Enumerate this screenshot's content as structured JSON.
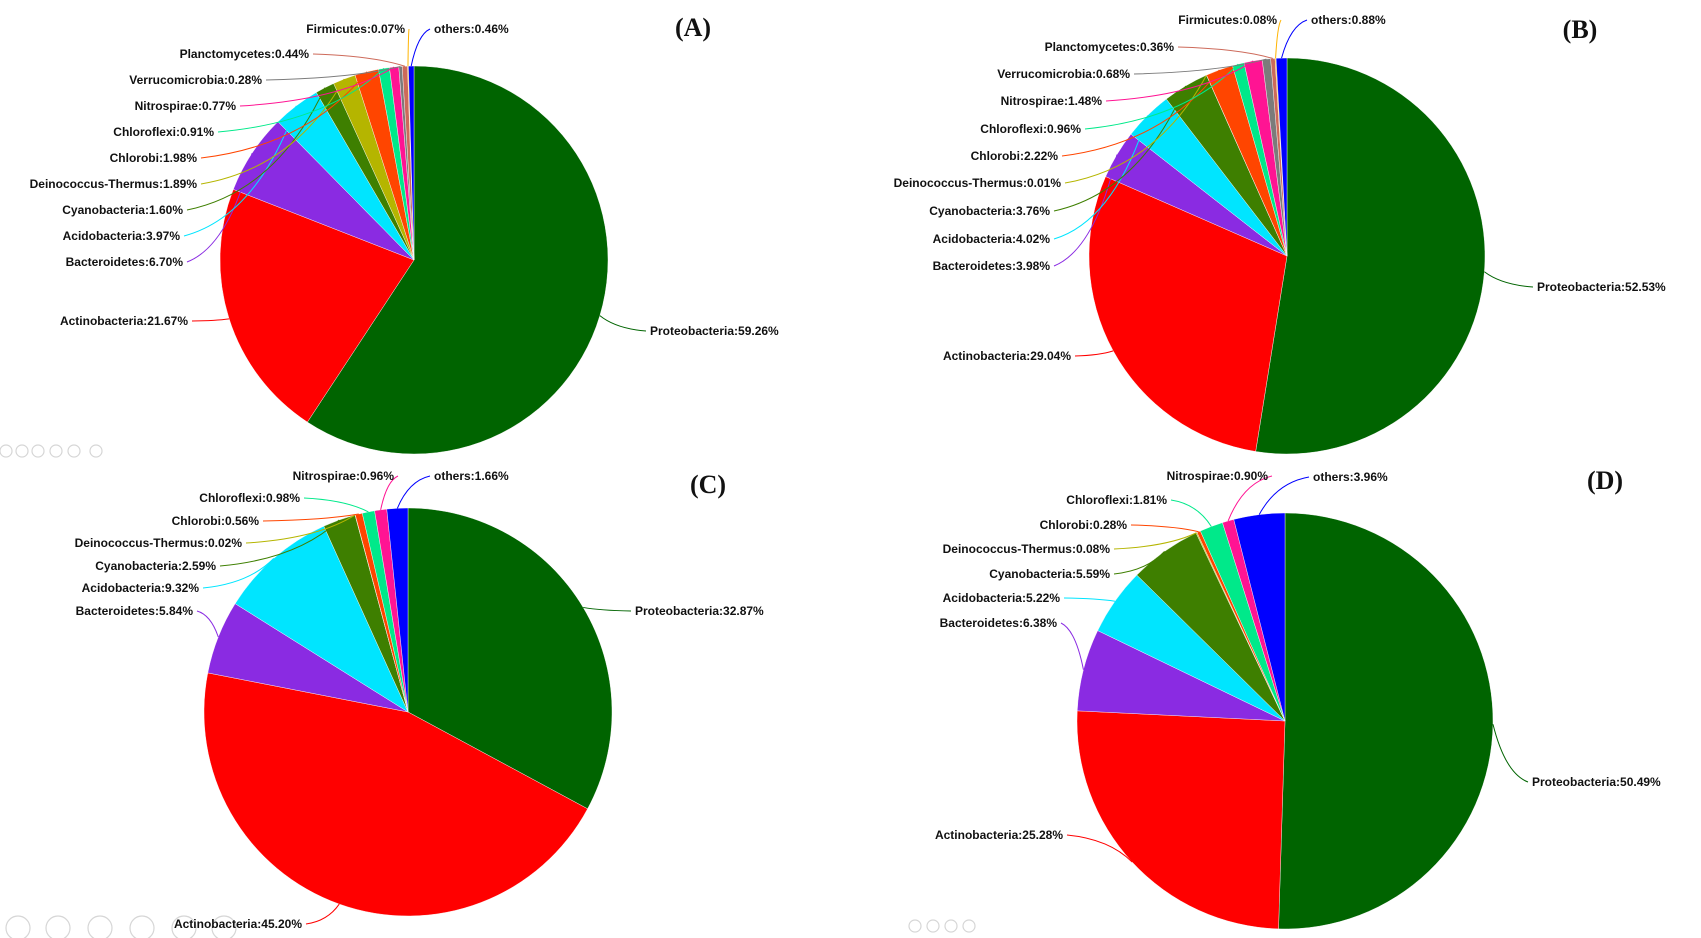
{
  "colors": {
    "Proteobacteria": "#006400",
    "Actinobacteria": "#ff0000",
    "Bacteroidetes": "#8a2be2",
    "Acidobacteria": "#00e5ff",
    "Cyanobacteria": "#3e7f00",
    "Deinococcus-Thermus": "#b5b500",
    "Chlorobi": "#ff4500",
    "Chloroflexi": "#00e98a",
    "Nitrospirae": "#ff1493",
    "Verrucomicrobia": "#7b7b7b",
    "Planctomycetes": "#cd6a5a",
    "Firmicutes": "#ffb400",
    "others": "#0000ff"
  },
  "chart_data": [
    {
      "type": "pie",
      "title": "(A)",
      "slices": [
        {
          "name": "Proteobacteria",
          "value": 59.26,
          "label": "Proteobacteria:59.26%"
        },
        {
          "name": "Actinobacteria",
          "value": 21.67,
          "label": "Actinobacteria:21.67%"
        },
        {
          "name": "Bacteroidetes",
          "value": 6.7,
          "label": "Bacteroidetes:6.70%"
        },
        {
          "name": "Acidobacteria",
          "value": 3.97,
          "label": "Acidobacteria:3.97%"
        },
        {
          "name": "Cyanobacteria",
          "value": 1.6,
          "label": "Cyanobacteria:1.60%"
        },
        {
          "name": "Deinococcus-Thermus",
          "value": 1.89,
          "label": "Deinococcus-Thermus:1.89%"
        },
        {
          "name": "Chlorobi",
          "value": 1.98,
          "label": "Chlorobi:1.98%"
        },
        {
          "name": "Chloroflexi",
          "value": 0.91,
          "label": "Chloroflexi:0.91%"
        },
        {
          "name": "Nitrospirae",
          "value": 0.77,
          "label": "Nitrospirae:0.77%"
        },
        {
          "name": "Verrucomicrobia",
          "value": 0.28,
          "label": "Verrucomicrobia:0.28%"
        },
        {
          "name": "Planctomycetes",
          "value": 0.44,
          "label": "Planctomycetes:0.44%"
        },
        {
          "name": "Firmicutes",
          "value": 0.07,
          "label": "Firmicutes:0.07%"
        },
        {
          "name": "others",
          "value": 0.46,
          "label": "others:0.46%"
        }
      ]
    },
    {
      "type": "pie",
      "title": "(B)",
      "slices": [
        {
          "name": "Proteobacteria",
          "value": 52.53,
          "label": "Proteobacteria:52.53%"
        },
        {
          "name": "Actinobacteria",
          "value": 29.04,
          "label": "Actinobacteria:29.04%"
        },
        {
          "name": "Bacteroidetes",
          "value": 3.98,
          "label": "Bacteroidetes:3.98%"
        },
        {
          "name": "Acidobacteria",
          "value": 4.02,
          "label": "Acidobacteria:4.02%"
        },
        {
          "name": "Cyanobacteria",
          "value": 3.76,
          "label": "Cyanobacteria:3.76%"
        },
        {
          "name": "Deinococcus-Thermus",
          "value": 0.01,
          "label": "Deinococcus-Thermus:0.01%"
        },
        {
          "name": "Chlorobi",
          "value": 2.22,
          "label": "Chlorobi:2.22%"
        },
        {
          "name": "Chloroflexi",
          "value": 0.96,
          "label": "Chloroflexi:0.96%"
        },
        {
          "name": "Nitrospirae",
          "value": 1.48,
          "label": "Nitrospirae:1.48%"
        },
        {
          "name": "Verrucomicrobia",
          "value": 0.68,
          "label": "Verrucomicrobia:0.68%"
        },
        {
          "name": "Planctomycetes",
          "value": 0.36,
          "label": "Planctomycetes:0.36%"
        },
        {
          "name": "Firmicutes",
          "value": 0.08,
          "label": "Firmicutes:0.08%"
        },
        {
          "name": "others",
          "value": 0.88,
          "label": "others:0.88%"
        }
      ]
    },
    {
      "type": "pie",
      "title": "(C)",
      "slices": [
        {
          "name": "Proteobacteria",
          "value": 32.87,
          "label": "Proteobacteria:32.87%"
        },
        {
          "name": "Actinobacteria",
          "value": 45.2,
          "label": "Actinobacteria:45.20%"
        },
        {
          "name": "Bacteroidetes",
          "value": 5.84,
          "label": "Bacteroidetes:5.84%"
        },
        {
          "name": "Acidobacteria",
          "value": 9.32,
          "label": "Acidobacteria:9.32%"
        },
        {
          "name": "Cyanobacteria",
          "value": 2.59,
          "label": "Cyanobacteria:2.59%"
        },
        {
          "name": "Deinococcus-Thermus",
          "value": 0.02,
          "label": "Deinococcus-Thermus:0.02%"
        },
        {
          "name": "Chlorobi",
          "value": 0.56,
          "label": "Chlorobi:0.56%"
        },
        {
          "name": "Chloroflexi",
          "value": 0.98,
          "label": "Chloroflexi:0.98%"
        },
        {
          "name": "Nitrospirae",
          "value": 0.96,
          "label": "Nitrospirae:0.96%"
        },
        {
          "name": "others",
          "value": 1.66,
          "label": "others:1.66%"
        }
      ]
    },
    {
      "type": "pie",
      "title": "(D)",
      "slices": [
        {
          "name": "Proteobacteria",
          "value": 50.49,
          "label": "Proteobacteria:50.49%"
        },
        {
          "name": "Actinobacteria",
          "value": 25.28,
          "label": "Actinobacteria:25.28%"
        },
        {
          "name": "Bacteroidetes",
          "value": 6.38,
          "label": "Bacteroidetes:6.38%"
        },
        {
          "name": "Acidobacteria",
          "value": 5.22,
          "label": "Acidobacteria:5.22%"
        },
        {
          "name": "Cyanobacteria",
          "value": 5.59,
          "label": "Cyanobacteria:5.59%"
        },
        {
          "name": "Deinococcus-Thermus",
          "value": 0.08,
          "label": "Deinococcus-Thermus:0.08%"
        },
        {
          "name": "Chlorobi",
          "value": 0.28,
          "label": "Chlorobi:0.28%"
        },
        {
          "name": "Chloroflexi",
          "value": 1.81,
          "label": "Chloroflexi:1.81%"
        },
        {
          "name": "Nitrospirae",
          "value": 0.9,
          "label": "Nitrospirae:0.90%"
        },
        {
          "name": "others",
          "value": 3.96,
          "label": "others:3.96%"
        }
      ]
    }
  ]
}
